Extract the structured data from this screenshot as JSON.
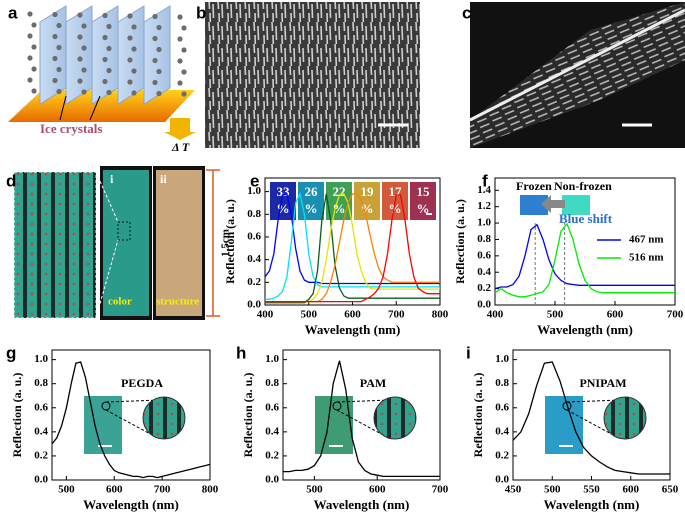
{
  "panel_labels": [
    "a",
    "b",
    "c",
    "d",
    "e",
    "f",
    "g",
    "h",
    "i"
  ],
  "schematic": {
    "label": "Ice crystals",
    "gradient": "Δ T"
  },
  "photos": {
    "labels": [
      "i",
      "ii"
    ],
    "captions": [
      "color",
      "structure"
    ],
    "scale": "1.5cm"
  },
  "chart_data": [
    {
      "type": "line",
      "xlabel": "Wavelength (nm)",
      "ylabel": "Reflection (a. u.)",
      "xlim": [
        400,
        800
      ],
      "xticks": [
        400,
        500,
        600,
        700,
        800
      ],
      "ylim": [
        0,
        1.12
      ],
      "yticks": [
        {
          "value": 0,
          "label": "0.0"
        },
        0.2,
        0.4,
        0.6,
        0.8,
        {
          "value": 1,
          "label": "1.0"
        }
      ],
      "swatches": [
        {
          "label": "33",
          "unit": "%",
          "color": "#1c2aa8"
        },
        {
          "label": "26",
          "unit": "%",
          "color": "#1b8fb0"
        },
        {
          "label": "22",
          "unit": "%",
          "color": "#3f9f55"
        },
        {
          "label": "19",
          "unit": "%",
          "color": "#c8a238"
        },
        {
          "label": "17",
          "unit": "%",
          "color": "#d05a3a"
        },
        {
          "label": "15",
          "unit": "%",
          "color": "#a03050"
        }
      ],
      "x": [
        400,
        410,
        420,
        430,
        440,
        450,
        460,
        470,
        480,
        490,
        500,
        510,
        520,
        530,
        540,
        550,
        560,
        570,
        580,
        590,
        600,
        610,
        620,
        630,
        640,
        650,
        660,
        670,
        680,
        690,
        700,
        710,
        720,
        730,
        740,
        750,
        760,
        770,
        780,
        790,
        800
      ],
      "series": [
        {
          "color": "#0000ff",
          "values": [
            0.25,
            0.3,
            0.45,
            0.75,
            0.97,
            0.98,
            0.8,
            0.5,
            0.3,
            0.22,
            0.2,
            0.2,
            0.2,
            0.19,
            0.19,
            0.19,
            0.19,
            0.19,
            0.19,
            0.19,
            0.19,
            0.19,
            0.19,
            0.19,
            0.19,
            0.19,
            0.19,
            0.19,
            0.19,
            0.19,
            0.19,
            0.19,
            0.19,
            0.19,
            0.19,
            0.19,
            0.19,
            0.19,
            0.19,
            0.19,
            0.19
          ]
        },
        {
          "color": "#00e0ff",
          "values": [
            0.05,
            0.05,
            0.06,
            0.08,
            0.12,
            0.25,
            0.55,
            0.9,
            0.98,
            0.8,
            0.45,
            0.25,
            0.18,
            0.16,
            0.16,
            0.16,
            0.16,
            0.16,
            0.16,
            0.16,
            0.16,
            0.16,
            0.16,
            0.16,
            0.16,
            0.16,
            0.16,
            0.16,
            0.16,
            0.16,
            0.16,
            0.16,
            0.16,
            0.16,
            0.16,
            0.16,
            0.16,
            0.16,
            0.16,
            0.16,
            0.16
          ]
        },
        {
          "color": "#0b5d1e",
          "values": [
            0.02,
            0.02,
            0.02,
            0.02,
            0.02,
            0.02,
            0.02,
            0.02,
            0.02,
            0.02,
            0.05,
            0.1,
            0.3,
            0.75,
            0.98,
            0.75,
            0.35,
            0.15,
            0.08,
            0.06,
            0.06,
            0.06,
            0.06,
            0.06,
            0.06,
            0.06,
            0.06,
            0.06,
            0.06,
            0.06,
            0.06,
            0.06,
            0.06,
            0.06,
            0.06,
            0.06,
            0.06,
            0.06,
            0.06,
            0.06,
            0.06
          ]
        },
        {
          "color": "#e6e600",
          "values": [
            0.03,
            0.03,
            0.03,
            0.03,
            0.03,
            0.03,
            0.03,
            0.03,
            0.03,
            0.03,
            0.03,
            0.05,
            0.1,
            0.2,
            0.4,
            0.65,
            0.85,
            0.97,
            0.98,
            0.9,
            0.7,
            0.45,
            0.3,
            0.2,
            0.15,
            0.14,
            0.14,
            0.14,
            0.14,
            0.14,
            0.14,
            0.14,
            0.14,
            0.14,
            0.14,
            0.14,
            0.14,
            0.14,
            0.14,
            0.14,
            0.14
          ]
        },
        {
          "color": "#ff7f00",
          "values": [
            0.03,
            0.03,
            0.03,
            0.03,
            0.03,
            0.03,
            0.03,
            0.03,
            0.03,
            0.03,
            0.03,
            0.03,
            0.03,
            0.05,
            0.1,
            0.2,
            0.35,
            0.55,
            0.75,
            0.9,
            0.98,
            0.98,
            0.92,
            0.8,
            0.62,
            0.45,
            0.32,
            0.25,
            0.22,
            0.2,
            0.2,
            0.2,
            0.2,
            0.2,
            0.2,
            0.2,
            0.2,
            0.2,
            0.2,
            0.2,
            0.2
          ]
        },
        {
          "color": "#ff0000",
          "values": [
            0.03,
            0.03,
            0.03,
            0.03,
            0.03,
            0.03,
            0.03,
            0.03,
            0.03,
            0.03,
            0.03,
            0.03,
            0.03,
            0.03,
            0.03,
            0.03,
            0.03,
            0.03,
            0.03,
            0.03,
            0.03,
            0.03,
            0.03,
            0.05,
            0.07,
            0.1,
            0.15,
            0.25,
            0.45,
            0.75,
            0.97,
            0.97,
            0.75,
            0.45,
            0.25,
            0.15,
            0.12,
            0.1,
            0.1,
            0.1,
            0.1
          ]
        }
      ]
    },
    {
      "type": "line",
      "xlabel": "Wavelength (nm)",
      "ylabel": "Reflection (a. u.)",
      "xlim": [
        400,
        700
      ],
      "xticks": [
        400,
        500,
        600,
        700
      ],
      "ylim": [
        0,
        1.55
      ],
      "yticks": [
        {
          "value": 0,
          "label": "0.0"
        },
        0.2,
        0.4,
        0.6,
        0.8,
        {
          "value": 1,
          "label": "1.0"
        },
        1.2,
        1.4
      ],
      "insets": [
        {
          "label": "Frozen",
          "color": "#2d7fd0"
        },
        {
          "label": "Non-frozen",
          "color": "#3fd9c4"
        }
      ],
      "annotation": "Blue shift",
      "peak_lines": [
        467,
        516
      ],
      "legend": "right",
      "x": [
        400,
        410,
        420,
        430,
        440,
        450,
        460,
        470,
        480,
        490,
        500,
        510,
        520,
        530,
        540,
        550,
        560,
        570,
        580,
        590,
        600,
        610,
        620,
        630,
        640,
        650,
        660,
        670,
        680,
        690,
        700
      ],
      "series": [
        {
          "name": "467 nm",
          "color": "#0000ff",
          "values": [
            0.2,
            0.22,
            0.22,
            0.25,
            0.35,
            0.6,
            0.92,
            0.98,
            0.8,
            0.55,
            0.38,
            0.3,
            0.26,
            0.25,
            0.24,
            0.24,
            0.24,
            0.24,
            0.24,
            0.24,
            0.24,
            0.24,
            0.24,
            0.24,
            0.24,
            0.24,
            0.24,
            0.24,
            0.24,
            0.24,
            0.24
          ]
        },
        {
          "name": "516 nm",
          "color": "#00ee00",
          "values": [
            0.15,
            0.2,
            0.15,
            0.12,
            0.1,
            0.1,
            0.12,
            0.14,
            0.16,
            0.25,
            0.55,
            0.9,
            0.99,
            0.8,
            0.5,
            0.3,
            0.2,
            0.16,
            0.15,
            0.15,
            0.15,
            0.15,
            0.15,
            0.15,
            0.15,
            0.15,
            0.15,
            0.15,
            0.15,
            0.15,
            0.15
          ]
        }
      ]
    },
    {
      "type": "line",
      "xlabel": "Wavelength (nm)",
      "ylabel": "Reflection (a. u.)",
      "xlim": [
        470,
        800
      ],
      "xticks": [
        500,
        600,
        700,
        800
      ],
      "ylim": [
        0,
        1.08
      ],
      "yticks": [
        {
          "value": 0,
          "label": "0.0"
        },
        0.2,
        0.4,
        0.6,
        0.8,
        {
          "value": 1,
          "label": "1.0"
        }
      ],
      "inset_label": "PEGDA",
      "inset_color": "#3aa396",
      "x": [
        470,
        480,
        490,
        500,
        510,
        520,
        530,
        540,
        550,
        560,
        570,
        580,
        590,
        600,
        610,
        620,
        630,
        640,
        650,
        660,
        670,
        680,
        690,
        700,
        710,
        720,
        730,
        740,
        750,
        760,
        770,
        780,
        790,
        800
      ],
      "series": [
        {
          "color": "#000000",
          "values": [
            0.3,
            0.35,
            0.45,
            0.6,
            0.8,
            0.97,
            0.98,
            0.85,
            0.65,
            0.45,
            0.3,
            0.2,
            0.13,
            0.08,
            0.06,
            0.05,
            0.04,
            0.03,
            0.03,
            0.02,
            0.03,
            0.03,
            0.02,
            0.03,
            0.04,
            0.05,
            0.06,
            0.07,
            0.08,
            0.09,
            0.1,
            0.11,
            0.12,
            0.13
          ]
        }
      ]
    },
    {
      "type": "line",
      "xlabel": "Wavelength (nm)",
      "ylabel": "Reflection (a. u.)",
      "xlim": [
        450,
        700
      ],
      "xticks": [
        500,
        600,
        700
      ],
      "ylim": [
        0,
        1.08
      ],
      "yticks": [
        {
          "value": 0,
          "label": "0.0"
        },
        0.2,
        0.4,
        0.6,
        0.8,
        {
          "value": 1,
          "label": "1.0"
        }
      ],
      "inset_label": "PAM",
      "inset_color": "#3f9c72",
      "x": [
        450,
        460,
        470,
        480,
        490,
        500,
        510,
        520,
        530,
        540,
        550,
        560,
        570,
        580,
        590,
        600,
        610,
        620,
        630,
        640,
        650,
        660,
        670,
        680,
        690,
        700
      ],
      "series": [
        {
          "color": "#000000",
          "values": [
            0.07,
            0.07,
            0.08,
            0.08,
            0.09,
            0.12,
            0.2,
            0.4,
            0.8,
            0.99,
            0.75,
            0.35,
            0.15,
            0.08,
            0.05,
            0.04,
            0.03,
            0.03,
            0.03,
            0.03,
            0.03,
            0.03,
            0.03,
            0.03,
            0.03,
            0.03
          ]
        }
      ]
    },
    {
      "type": "line",
      "xlabel": "Wavelength (nm)",
      "ylabel": "Reflection (a. u.)",
      "xlim": [
        450,
        650
      ],
      "xticks": [
        450,
        500,
        550,
        600,
        650
      ],
      "ylim": [
        0,
        1.08
      ],
      "yticks": [
        {
          "value": 0,
          "label": "0.0"
        },
        0.2,
        0.4,
        0.6,
        0.8,
        {
          "value": 1,
          "label": "1.0"
        }
      ],
      "inset_label": "PNIPAM",
      "inset_color": "#2a9cc8",
      "x": [
        450,
        460,
        470,
        480,
        490,
        500,
        510,
        520,
        530,
        540,
        550,
        560,
        570,
        580,
        590,
        600,
        610,
        620,
        630,
        640,
        650
      ],
      "series": [
        {
          "color": "#000000",
          "values": [
            0.33,
            0.4,
            0.55,
            0.78,
            0.97,
            0.98,
            0.82,
            0.6,
            0.4,
            0.27,
            0.2,
            0.15,
            0.11,
            0.08,
            0.07,
            0.06,
            0.05,
            0.05,
            0.05,
            0.05,
            0.05
          ]
        }
      ]
    }
  ]
}
